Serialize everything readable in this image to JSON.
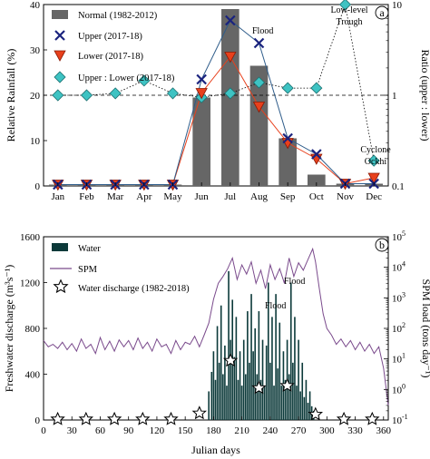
{
  "chart_data": [
    {
      "type": "bar",
      "panel_label": "a",
      "categories": [
        "Jan",
        "Feb",
        "Mar",
        "Apr",
        "May",
        "Jun",
        "Jul",
        "Aug",
        "Sep",
        "Oct",
        "Nov",
        "Dec"
      ],
      "ylabel": "Relative Rainfall (%)",
      "ylabel2": "Ratio (upper : lower)",
      "ylim": [
        0,
        40
      ],
      "yticks": [
        "0",
        "10",
        "20",
        "30",
        "40"
      ],
      "y2_scale": "log",
      "y2lim": [
        0.1,
        10
      ],
      "y2ticks": [
        "0.1",
        "1",
        "10"
      ],
      "legend_position": "top-left",
      "grid": false,
      "reference_line_y2": 1,
      "series": [
        {
          "name": "Normal (1982-2012)",
          "kind": "bar",
          "color": "#666666",
          "values": [
            0.3,
            0.3,
            0.3,
            0.3,
            0.3,
            19.5,
            39,
            26.5,
            10.5,
            2.5,
            0.5,
            0.5
          ]
        },
        {
          "name": "Upper (2017-18)",
          "kind": "line",
          "marker": "x",
          "color": "#1a237e",
          "line_color": "#2e5c8a",
          "values": [
            0.3,
            0.3,
            0.3,
            0.3,
            0.3,
            23.5,
            36.5,
            31.5,
            10.5,
            7,
            0.5,
            0.5
          ]
        },
        {
          "name": "Lower (2017-18)",
          "kind": "line",
          "marker": "triangle-down",
          "color": "#e8401c",
          "line_color": "#e8401c",
          "values": [
            0.3,
            0.3,
            0.3,
            0.3,
            0.3,
            20.5,
            28.5,
            17.5,
            9.5,
            6,
            0.5,
            1.8
          ]
        },
        {
          "name": "Upper : Lower (2017-18)",
          "kind": "line",
          "marker": "diamond",
          "axis": "right",
          "color": "#3ec3c3",
          "line_style": "dotted",
          "values": [
            1.0,
            1.0,
            1.05,
            1.45,
            1.05,
            0.95,
            1.05,
            1.38,
            1.2,
            1.2,
            10,
            0.19
          ]
        }
      ],
      "annotations": [
        {
          "text": "Flood",
          "x": "Jul",
          "y": 34
        },
        {
          "text": "Low-level",
          "x": "Nov",
          "y": 39
        },
        {
          "text": "Trough",
          "x": "Nov",
          "y": 36.5
        },
        {
          "text": "Cyclone",
          "x": "Dec",
          "y": 9
        },
        {
          "text": "Ockhi",
          "x": "Dec",
          "y": 6.5
        }
      ]
    },
    {
      "type": "bar",
      "panel_label": "b",
      "xlabel": "Julian days",
      "ylabel": "Freshwater discharge (m³s⁻¹)",
      "ylabel2": "SPM load (tons day⁻¹)",
      "xlim": [
        0,
        365
      ],
      "xticks": [
        "0",
        "30",
        "60",
        "90",
        "120",
        "150",
        "180",
        "210",
        "240",
        "270",
        "300",
        "330",
        "360"
      ],
      "ylim": [
        0,
        1600
      ],
      "yticks": [
        "0",
        "400",
        "800",
        "1200",
        "1600"
      ],
      "y2_scale": "log",
      "y2lim": [
        0.1,
        100000
      ],
      "legend_position": "top-left",
      "grid": false,
      "series": [
        {
          "name": "Water",
          "kind": "bar",
          "color": "#0c3a3a",
          "points": [
            [
              175,
              250
            ],
            [
              178,
              420
            ],
            [
              180,
              600
            ],
            [
              182,
              350
            ],
            [
              184,
              820
            ],
            [
              186,
              500
            ],
            [
              188,
              1000
            ],
            [
              190,
              400
            ],
            [
              192,
              650
            ],
            [
              194,
              300
            ],
            [
              196,
              1300
            ],
            [
              198,
              700
            ],
            [
              200,
              1050
            ],
            [
              202,
              550
            ],
            [
              204,
              900
            ],
            [
              206,
              350
            ],
            [
              208,
              600
            ],
            [
              210,
              300
            ],
            [
              212,
              700
            ],
            [
              214,
              400
            ],
            [
              216,
              950
            ],
            [
              218,
              500
            ],
            [
              220,
              1100
            ],
            [
              222,
              600
            ],
            [
              224,
              800
            ],
            [
              226,
              400
            ],
            [
              228,
              950
            ],
            [
              230,
              350
            ],
            [
              232,
              700
            ],
            [
              234,
              300
            ],
            [
              236,
              650
            ],
            [
              238,
              1200
            ],
            [
              240,
              500
            ],
            [
              242,
              900
            ],
            [
              244,
              300
            ],
            [
              246,
              1100
            ],
            [
              248,
              450
            ],
            [
              250,
              850
            ],
            [
              252,
              300
            ],
            [
              254,
              600
            ],
            [
              256,
              350
            ],
            [
              258,
              700
            ],
            [
              260,
              400
            ],
            [
              262,
              1200
            ],
            [
              264,
              500
            ],
            [
              266,
              900
            ],
            [
              268,
              300
            ],
            [
              270,
              700
            ],
            [
              272,
              250
            ],
            [
              274,
              500
            ],
            [
              276,
              200
            ],
            [
              278,
              350
            ],
            [
              280,
              150
            ],
            [
              282,
              250
            ],
            [
              284,
              120
            ],
            [
              286,
              80
            ]
          ]
        },
        {
          "name": "SPM",
          "kind": "line",
          "axis": "right",
          "color": "#7a4a8c",
          "values_note": "daily load, log scale",
          "points": [
            [
              0,
              40
            ],
            [
              5,
              25
            ],
            [
              10,
              30
            ],
            [
              15,
              22
            ],
            [
              20,
              35
            ],
            [
              25,
              20
            ],
            [
              30,
              32
            ],
            [
              35,
              18
            ],
            [
              40,
              45
            ],
            [
              45,
              22
            ],
            [
              50,
              30
            ],
            [
              55,
              15
            ],
            [
              60,
              50
            ],
            [
              65,
              20
            ],
            [
              70,
              38
            ],
            [
              75,
              18
            ],
            [
              80,
              42
            ],
            [
              85,
              25
            ],
            [
              90,
              40
            ],
            [
              95,
              20
            ],
            [
              100,
              48
            ],
            [
              105,
              22
            ],
            [
              110,
              35
            ],
            [
              115,
              18
            ],
            [
              120,
              45
            ],
            [
              125,
              25
            ],
            [
              130,
              30
            ],
            [
              135,
              15
            ],
            [
              140,
              40
            ],
            [
              145,
              20
            ],
            [
              150,
              35
            ],
            [
              155,
              30
            ],
            [
              160,
              55
            ],
            [
              165,
              25
            ],
            [
              170,
              60
            ],
            [
              175,
              150
            ],
            [
              180,
              900
            ],
            [
              185,
              3000
            ],
            [
              190,
              5000
            ],
            [
              195,
              9000
            ],
            [
              200,
              20000
            ],
            [
              205,
              4000
            ],
            [
              210,
              12000
            ],
            [
              215,
              6000
            ],
            [
              220,
              15000
            ],
            [
              225,
              3000
            ],
            [
              230,
              8000
            ],
            [
              235,
              2000
            ],
            [
              240,
              12000
            ],
            [
              245,
              4000
            ],
            [
              250,
              9000
            ],
            [
              255,
              3000
            ],
            [
              260,
              20000
            ],
            [
              265,
              5000
            ],
            [
              270,
              14000
            ],
            [
              275,
              8000
            ],
            [
              280,
              18000
            ],
            [
              285,
              40000
            ],
            [
              288,
              15000
            ],
            [
              292,
              2000
            ],
            [
              296,
              300
            ],
            [
              300,
              100
            ],
            [
              305,
              60
            ],
            [
              310,
              30
            ],
            [
              315,
              45
            ],
            [
              320,
              25
            ],
            [
              325,
              40
            ],
            [
              330,
              20
            ],
            [
              335,
              35
            ],
            [
              340,
              18
            ],
            [
              345,
              30
            ],
            [
              350,
              15
            ],
            [
              355,
              25
            ],
            [
              360,
              5
            ],
            [
              365,
              0.3
            ]
          ]
        },
        {
          "name": "Water discharge (1982-2018)",
          "kind": "marker",
          "marker": "star",
          "points": [
            [
              15,
              0
            ],
            [
              45,
              0
            ],
            [
              75,
              0
            ],
            [
              105,
              0
            ],
            [
              135,
              0
            ],
            [
              165,
              60
            ],
            [
              198,
              520
            ],
            [
              228,
              280
            ],
            [
              258,
              300
            ],
            [
              288,
              50
            ],
            [
              318,
              0
            ],
            [
              348,
              0
            ]
          ]
        }
      ],
      "annotations": [
        {
          "text": "Flood",
          "x": 230,
          "y": 1000
        },
        {
          "text": "Flood",
          "x": 258,
          "y": 1150
        }
      ]
    }
  ]
}
